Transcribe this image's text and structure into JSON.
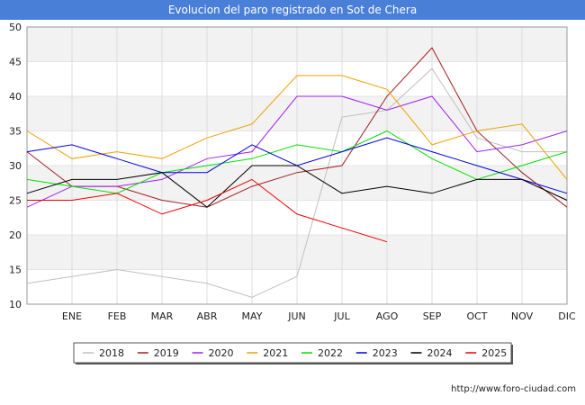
{
  "page": {
    "title": "Evolucion del paro registrado en Sot de Chera",
    "footer": "http://www.foro-ciudad.com"
  },
  "chart_data": {
    "type": "line",
    "title": "Evolucion del paro registrado en Sot de Chera",
    "xlabel": "",
    "ylabel": "",
    "categories": [
      "",
      "ENE",
      "FEB",
      "MAR",
      "ABR",
      "MAY",
      "JUN",
      "JUL",
      "AGO",
      "SEP",
      "OCT",
      "NOV",
      "DIC"
    ],
    "ylim": [
      10,
      50
    ],
    "yticks": [
      10,
      15,
      20,
      25,
      30,
      35,
      40,
      45,
      50
    ],
    "grid": true,
    "legend_position": "bottom",
    "series": [
      {
        "name": "2018",
        "color": "#c0c0c0",
        "values": [
          13,
          14,
          15,
          14,
          13,
          11,
          14,
          37,
          38,
          44,
          34,
          32,
          32
        ]
      },
      {
        "name": "2019",
        "color": "#a02020",
        "values": [
          32,
          27,
          27,
          25,
          24,
          27,
          29,
          30,
          40,
          47,
          35,
          29,
          24
        ]
      },
      {
        "name": "2020",
        "color": "#a020f0",
        "values": [
          24,
          27,
          27,
          28,
          31,
          32,
          40,
          40,
          38,
          40,
          32,
          33,
          35
        ]
      },
      {
        "name": "2021",
        "color": "#f0a000",
        "values": [
          35,
          31,
          32,
          31,
          34,
          36,
          43,
          43,
          41,
          33,
          35,
          36,
          28
        ]
      },
      {
        "name": "2022",
        "color": "#00e000",
        "values": [
          28,
          27,
          26,
          29,
          30,
          31,
          33,
          32,
          35,
          31,
          28,
          30,
          32
        ]
      },
      {
        "name": "2023",
        "color": "#0000e0",
        "values": [
          32,
          33,
          31,
          29,
          29,
          33,
          30,
          32,
          34,
          32,
          30,
          28,
          26
        ]
      },
      {
        "name": "2024",
        "color": "#000000",
        "values": [
          26,
          28,
          28,
          29,
          24,
          30,
          30,
          26,
          27,
          26,
          28,
          28,
          25
        ]
      },
      {
        "name": "2025",
        "color": "#ee0000",
        "values": [
          25,
          25,
          26,
          23,
          25,
          28,
          23,
          21,
          19,
          null,
          null,
          null,
          null
        ]
      }
    ]
  }
}
